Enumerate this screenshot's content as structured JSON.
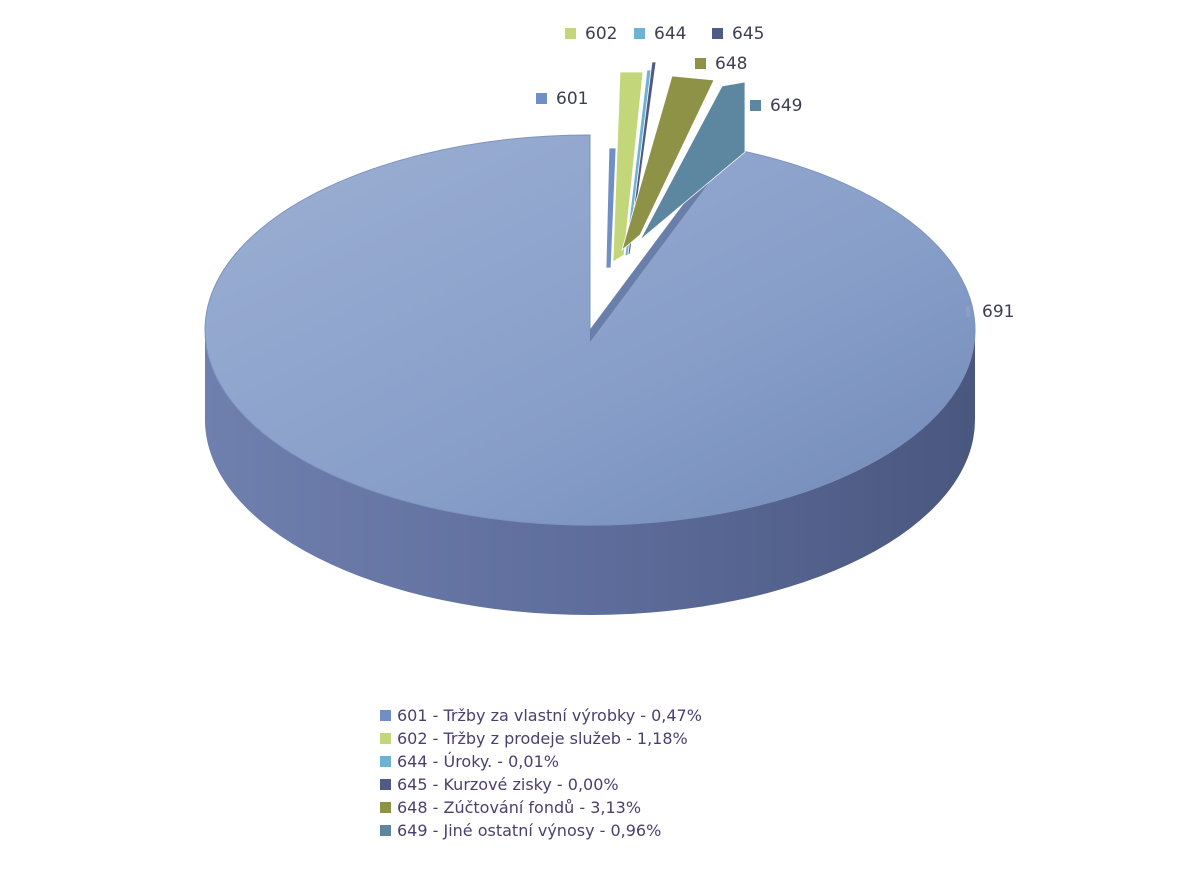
{
  "chart_data": {
    "type": "pie",
    "title": "",
    "style": "3d-exploded",
    "series": [
      {
        "id": "601",
        "label": "601",
        "legend": "601 - Tržby za vlastní výrobky - 0,47%",
        "value": 0.47,
        "color": "#6f8fc6"
      },
      {
        "id": "602",
        "label": "602",
        "legend": "602 - Tržby z prodeje služeb - 1,18%",
        "value": 1.18,
        "color": "#c3d67a"
      },
      {
        "id": "644",
        "label": "644",
        "legend": "644 - Úroky. - 0,01%",
        "value": 0.01,
        "color": "#6fb3d4"
      },
      {
        "id": "645",
        "label": "645",
        "legend": "645 - Kurzové zisky - 0,00%",
        "value": 0.0,
        "color": "#4f5b84"
      },
      {
        "id": "648",
        "label": "648",
        "legend": "648 - Zúčtování fondů - 3,13%",
        "value": 3.13,
        "color": "#8e9246"
      },
      {
        "id": "649",
        "label": "649",
        "legend": "649 - Jiné ostatní výnosy - 0,96%",
        "value": 0.96,
        "color": "#5d87a0"
      },
      {
        "id": "691",
        "label": "691",
        "legend": "",
        "value": 94.25,
        "color": "#8aa0c8"
      }
    ],
    "legend_position": "bottom"
  }
}
